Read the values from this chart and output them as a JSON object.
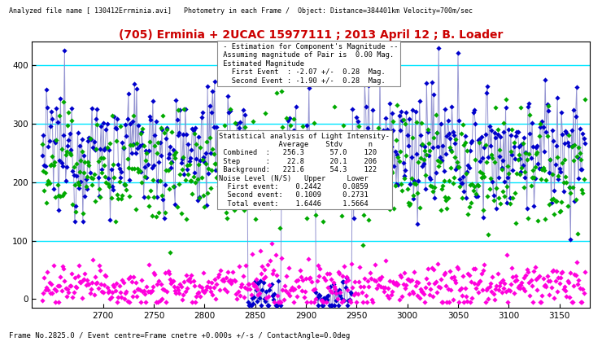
{
  "title": "(705) Erminia + 2UCAC 15977111 ; 2013 April 12 ; B. Loader",
  "top_label": "Analyzed file name [ 130412Errminia.avi]   Photometry in each Frame /  Object: Distance=384401km Velocity=700m/sec",
  "bottom_label": "Frame No.2825.0 / Event centre=Frame cnetre +0.000s +/-s / ContactAngle=0.0deg",
  "xlim": [
    2630,
    3180
  ],
  "ylim": [
    -15,
    440
  ],
  "xticks": [
    2700,
    2750,
    2800,
    2850,
    2900,
    2950,
    3000,
    3050,
    3100,
    3150
  ],
  "yticks": [
    0,
    100,
    200,
    300,
    400
  ],
  "hline_color": "#00e5ff",
  "annotation_box1": " - Estimation for Component's Magnitude --\n Assuming magnitude of Pair is  0.00 Mag.\n Estimated Magnitude\n   First Event  : -2.07 +/-  0.28  Mag.\n   Second Event : -1.90 +/-  0.28  Mag.",
  "annotation_box2": "Statistical analysis of Light Intensity-\n              Average    Stdv      n\n Combined  :   256.3      57.0    120\n Step      :    22.8      20.1    206\n Background:   221.6      54.3    122\nNoise Level (N/S)   Upper     Lower\n  First event:    0.2442     0.0859\n  Second event:   0.1009     0.2731\n  Total event:    1.6446     1.5664",
  "background_color": "#ffffff",
  "title_color": "#cc0000",
  "line_color": "#8888cc",
  "diamond_blue": "#0000cc",
  "diamond_green": "#00aa00",
  "diamond_magenta": "#ff00dd",
  "main_level": 256.0,
  "bg_level": 222.0,
  "step_level": 22.8,
  "low_level": 5.0,
  "occ1_start": 2843,
  "occ1_end": 2875,
  "occ2_start": 2910,
  "occ2_end": 2945,
  "frames_start": 2640,
  "frames_end": 3175,
  "hlines": [
    100,
    200,
    300,
    400
  ]
}
